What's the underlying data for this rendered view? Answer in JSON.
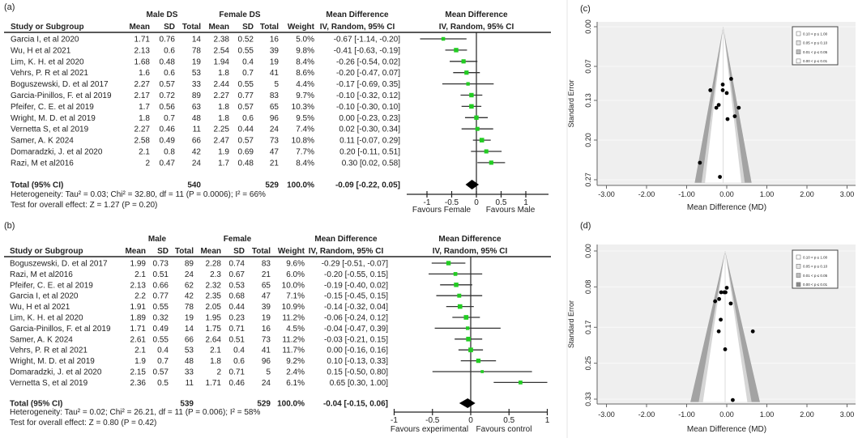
{
  "chart_data": [
    {
      "type": "forest",
      "panel_label": "(a)",
      "group1": "Male DS",
      "group2": "Female DS",
      "headers": {
        "study": "Study or Subgroup",
        "mean": "Mean",
        "sd": "SD",
        "total": "Total",
        "weight": "Weight",
        "md_title": "Mean Difference",
        "md_sub": "IV, Random, 95% CI"
      },
      "studies": [
        {
          "name": "Garcia I, et al 2020",
          "m1": "1.71",
          "sd1": "0.76",
          "n1": "14",
          "m2": "2.38",
          "sd2": "0.52",
          "n2": "16",
          "weight": "5.0%",
          "ci_text": "-0.67 [-1.14, -0.20]",
          "md": -0.67,
          "lo": -1.14,
          "hi": -0.2,
          "w": 5.0
        },
        {
          "name": "Wu, H et al 2021",
          "m1": "2.13",
          "sd1": "0.6",
          "n1": "78",
          "m2": "2.54",
          "sd2": "0.55",
          "n2": "39",
          "weight": "9.8%",
          "ci_text": "-0.41 [-0.63, -0.19]",
          "md": -0.41,
          "lo": -0.63,
          "hi": -0.19,
          "w": 9.8
        },
        {
          "name": "Lim, K. H. et al 2020",
          "m1": "1.68",
          "sd1": "0.48",
          "n1": "19",
          "m2": "1.94",
          "sd2": "0.4",
          "n2": "19",
          "weight": "8.4%",
          "ci_text": "-0.26 [-0.54, 0.02]",
          "md": -0.26,
          "lo": -0.54,
          "hi": 0.02,
          "w": 8.4
        },
        {
          "name": "Vehrs, P. R et al 2021",
          "m1": "1.6",
          "sd1": "0.6",
          "n1": "53",
          "m2": "1.8",
          "sd2": "0.7",
          "n2": "41",
          "weight": "8.6%",
          "ci_text": "-0.20 [-0.47, 0.07]",
          "md": -0.2,
          "lo": -0.47,
          "hi": 0.07,
          "w": 8.6
        },
        {
          "name": "Boguszewski, D. et al 2017",
          "m1": "2.27",
          "sd1": "0.57",
          "n1": "33",
          "m2": "2.44",
          "sd2": "0.55",
          "n2": "5",
          "weight": "4.4%",
          "ci_text": "-0.17 [-0.69, 0.35]",
          "md": -0.17,
          "lo": -0.69,
          "hi": 0.35,
          "w": 4.4
        },
        {
          "name": "Garcia-Pinillos, F. et al 2019",
          "m1": "2.17",
          "sd1": "0.72",
          "n1": "89",
          "m2": "2.27",
          "sd2": "0.77",
          "n2": "83",
          "weight": "9.7%",
          "ci_text": "-0.10 [-0.32, 0.12]",
          "md": -0.1,
          "lo": -0.32,
          "hi": 0.12,
          "w": 9.7
        },
        {
          "name": "Pfeifer, C. E. et al 2019",
          "m1": "1.7",
          "sd1": "0.56",
          "n1": "63",
          "m2": "1.8",
          "sd2": "0.57",
          "n2": "65",
          "weight": "10.3%",
          "ci_text": "-0.10 [-0.30, 0.10]",
          "md": -0.1,
          "lo": -0.3,
          "hi": 0.1,
          "w": 10.3
        },
        {
          "name": "Wright, M. D. et al 2019",
          "m1": "1.8",
          "sd1": "0.7",
          "n1": "48",
          "m2": "1.8",
          "sd2": "0.6",
          "n2": "96",
          "weight": "9.5%",
          "ci_text": "0.00 [-0.23, 0.23]",
          "md": 0.0,
          "lo": -0.23,
          "hi": 0.23,
          "w": 9.5
        },
        {
          "name": "Vernetta S, et al 2019",
          "m1": "2.27",
          "sd1": "0.46",
          "n1": "11",
          "m2": "2.25",
          "sd2": "0.44",
          "n2": "24",
          "weight": "7.4%",
          "ci_text": "0.02 [-0.30, 0.34]",
          "md": 0.02,
          "lo": -0.3,
          "hi": 0.34,
          "w": 7.4
        },
        {
          "name": "Samer, A. K 2024",
          "m1": "2.58",
          "sd1": "0.49",
          "n1": "66",
          "m2": "2.47",
          "sd2": "0.57",
          "n2": "73",
          "weight": "10.8%",
          "ci_text": "0.11 [-0.07, 0.29]",
          "md": 0.11,
          "lo": -0.07,
          "hi": 0.29,
          "w": 10.8
        },
        {
          "name": "Domaradzki, J. et al 2020",
          "m1": "2.1",
          "sd1": "0.8",
          "n1": "42",
          "m2": "1.9",
          "sd2": "0.69",
          "n2": "47",
          "weight": "7.7%",
          "ci_text": "0.20 [-0.11, 0.51]",
          "md": 0.2,
          "lo": -0.11,
          "hi": 0.51,
          "w": 7.7
        },
        {
          "name": "Razi, M et al2016",
          "m1": "2",
          "sd1": "0.47",
          "n1": "24",
          "m2": "1.7",
          "sd2": "0.48",
          "n2": "21",
          "weight": "8.4%",
          "ci_text": "0.30 [0.02, 0.58]",
          "md": 0.3,
          "lo": 0.02,
          "hi": 0.58,
          "w": 8.4
        }
      ],
      "total": {
        "label": "Total (95% CI)",
        "n1": "540",
        "n2": "529",
        "weight": "100.0%",
        "ci_text": "-0.09 [-0.22, 0.05]",
        "md": -0.09,
        "lo": -0.22,
        "hi": 0.05
      },
      "heterogeneity": "Heterogeneity: Tau² = 0.03; Chi² = 32.80, df = 11 (P = 0.0006); I² = 66%",
      "overall": "Test for overall effect: Z = 1.27 (P = 0.20)",
      "axis": {
        "ticks": [
          -1,
          -0.5,
          0,
          0.5,
          1
        ],
        "tick_labels": [
          "-1",
          "-0.5",
          "0",
          "0.5",
          "1"
        ],
        "favours_left": "Favours Female",
        "favours_right": "Favours Male"
      },
      "colors": {
        "point": "#22cc22",
        "line": "#333333"
      }
    },
    {
      "type": "forest",
      "panel_label": "(b)",
      "group1": "Male",
      "group2": "Female",
      "headers": {
        "study": "Study or Subgroup",
        "mean": "Mean",
        "sd": "SD",
        "total": "Total",
        "weight": "Weight",
        "md_title": "Mean Difference",
        "md_sub": "IV, Random, 95% CI"
      },
      "studies": [
        {
          "name": "Boguszewski, D. et al 2017",
          "m1": "1.99",
          "sd1": "0.73",
          "n1": "89",
          "m2": "2.28",
          "sd2": "0.74",
          "n2": "83",
          "weight": "9.6%",
          "ci_text": "-0.29 [-0.51, -0.07]",
          "md": -0.29,
          "lo": -0.51,
          "hi": -0.07,
          "w": 9.6
        },
        {
          "name": "Razi, M et al2016",
          "m1": "2.1",
          "sd1": "0.51",
          "n1": "24",
          "m2": "2.3",
          "sd2": "0.67",
          "n2": "21",
          "weight": "6.0%",
          "ci_text": "-0.20 [-0.55, 0.15]",
          "md": -0.2,
          "lo": -0.55,
          "hi": 0.15,
          "w": 6.0
        },
        {
          "name": "Pfeifer, C. E. et al 2019",
          "m1": "2.13",
          "sd1": "0.66",
          "n1": "62",
          "m2": "2.32",
          "sd2": "0.53",
          "n2": "65",
          "weight": "10.0%",
          "ci_text": "-0.19 [-0.40, 0.02]",
          "md": -0.19,
          "lo": -0.4,
          "hi": 0.02,
          "w": 10.0
        },
        {
          "name": "Garcia I, et al 2020",
          "m1": "2.2",
          "sd1": "0.77",
          "n1": "42",
          "m2": "2.35",
          "sd2": "0.68",
          "n2": "47",
          "weight": "7.1%",
          "ci_text": "-0.15 [-0.45, 0.15]",
          "md": -0.15,
          "lo": -0.45,
          "hi": 0.15,
          "w": 7.1
        },
        {
          "name": "Wu, H et al 2021",
          "m1": "1.91",
          "sd1": "0.55",
          "n1": "78",
          "m2": "2.05",
          "sd2": "0.44",
          "n2": "39",
          "weight": "10.9%",
          "ci_text": "-0.14 [-0.32, 0.04]",
          "md": -0.14,
          "lo": -0.32,
          "hi": 0.04,
          "w": 10.9
        },
        {
          "name": "Lim, K. H. et al 2020",
          "m1": "1.89",
          "sd1": "0.32",
          "n1": "19",
          "m2": "1.95",
          "sd2": "0.23",
          "n2": "19",
          "weight": "11.2%",
          "ci_text": "-0.06 [-0.24, 0.12]",
          "md": -0.06,
          "lo": -0.24,
          "hi": 0.12,
          "w": 11.2
        },
        {
          "name": "Garcia-Pinillos, F. et al 2019",
          "m1": "1.71",
          "sd1": "0.49",
          "n1": "14",
          "m2": "1.75",
          "sd2": "0.71",
          "n2": "16",
          "weight": "4.5%",
          "ci_text": "-0.04 [-0.47, 0.39]",
          "md": -0.04,
          "lo": -0.47,
          "hi": 0.39,
          "w": 4.5
        },
        {
          "name": "Samer, A. K 2024",
          "m1": "2.61",
          "sd1": "0.55",
          "n1": "66",
          "m2": "2.64",
          "sd2": "0.51",
          "n2": "73",
          "weight": "11.2%",
          "ci_text": "-0.03 [-0.21, 0.15]",
          "md": -0.03,
          "lo": -0.21,
          "hi": 0.15,
          "w": 11.2
        },
        {
          "name": "Vehrs, P. R et al 2021",
          "m1": "2.1",
          "sd1": "0.4",
          "n1": "53",
          "m2": "2.1",
          "sd2": "0.4",
          "n2": "41",
          "weight": "11.7%",
          "ci_text": "0.00 [-0.16, 0.16]",
          "md": 0.0,
          "lo": -0.16,
          "hi": 0.16,
          "w": 11.7
        },
        {
          "name": "Wright, M. D. et al 2019",
          "m1": "1.9",
          "sd1": "0.7",
          "n1": "48",
          "m2": "1.8",
          "sd2": "0.6",
          "n2": "96",
          "weight": "9.2%",
          "ci_text": "0.10 [-0.13, 0.33]",
          "md": 0.1,
          "lo": -0.13,
          "hi": 0.33,
          "w": 9.2
        },
        {
          "name": "Domaradzki, J. et al 2020",
          "m1": "2.15",
          "sd1": "0.57",
          "n1": "33",
          "m2": "2",
          "sd2": "0.71",
          "n2": "5",
          "weight": "2.4%",
          "ci_text": "0.15 [-0.50, 0.80]",
          "md": 0.15,
          "lo": -0.5,
          "hi": 0.8,
          "w": 2.4
        },
        {
          "name": "Vernetta S, et al 2019",
          "m1": "2.36",
          "sd1": "0.5",
          "n1": "11",
          "m2": "1.71",
          "sd2": "0.46",
          "n2": "24",
          "weight": "6.1%",
          "ci_text": "0.65 [0.30, 1.00]",
          "md": 0.65,
          "lo": 0.3,
          "hi": 1.0,
          "w": 6.1
        }
      ],
      "total": {
        "label": "Total (95% CI)",
        "n1": "539",
        "n2": "529",
        "weight": "100.0%",
        "ci_text": "-0.04 [-0.15, 0.06]",
        "md": -0.04,
        "lo": -0.15,
        "hi": 0.06
      },
      "heterogeneity": "Heterogeneity: Tau² = 0.02; Chi² = 26.21, df = 11 (P = 0.006); I² = 58%",
      "overall": "Test for overall effect: Z = 0.80 (P = 0.42)",
      "axis": {
        "ticks": [
          -1,
          -0.5,
          0,
          0.5,
          1
        ],
        "tick_labels": [
          "-1",
          "-0.5",
          "0",
          "0.5",
          "1"
        ],
        "favours_left": "Favours  experimental",
        "favours_right": "Favours control"
      },
      "colors": {
        "point": "#22cc22",
        "line": "#333333"
      }
    },
    {
      "type": "scatter",
      "subtype": "funnel",
      "panel_label": "(c)",
      "xlabel": "Mean Difference (MD)",
      "ylabel": "Standard Error",
      "xlim": [
        -3.3,
        3.2
      ],
      "x_ticks": [
        -3,
        -2,
        -1,
        0,
        1,
        2,
        3
      ],
      "x_tick_labels": [
        "-3.00",
        "-2.00",
        "-1.00",
        "0.00",
        "1.00",
        "2.00",
        "3.00"
      ],
      "ylim": [
        0,
        0.27
      ],
      "y_ticks": [
        0,
        0.07,
        0.13,
        0.2,
        0.27
      ],
      "y_tick_labels": [
        "0.00",
        "0.07",
        "0.13",
        "0.20",
        "0.27"
      ],
      "center": -0.09,
      "legend": [
        "0.10 < p ≤ 1.00",
        "0.05 < p ≤ 0.10",
        "0.01 < p ≤ 0.05",
        "0.00 < p ≤ 0.01"
      ],
      "legend_placement": "top-right",
      "points": [
        {
          "md": -0.67,
          "se": 0.24
        },
        {
          "md": -0.41,
          "se": 0.112
        },
        {
          "md": -0.26,
          "se": 0.143
        },
        {
          "md": -0.2,
          "se": 0.138
        },
        {
          "md": -0.17,
          "se": 0.265
        },
        {
          "md": -0.1,
          "se": 0.112
        },
        {
          "md": -0.1,
          "se": 0.102
        },
        {
          "md": 0.0,
          "se": 0.117
        },
        {
          "md": 0.02,
          "se": 0.163
        },
        {
          "md": 0.11,
          "se": 0.092
        },
        {
          "md": 0.2,
          "se": 0.158
        },
        {
          "md": 0.3,
          "se": 0.143
        }
      ]
    },
    {
      "type": "scatter",
      "subtype": "funnel",
      "panel_label": "(d)",
      "xlabel": "Mean Difference (MD)",
      "ylabel": "Standard Error",
      "xlim": [
        -3.3,
        3.2
      ],
      "x_ticks": [
        -3,
        -2,
        -1,
        0,
        1,
        2,
        3
      ],
      "x_tick_labels": [
        "-3.00",
        "-2.00",
        "-1.00",
        "0.00",
        "1.00",
        "2.00",
        "3.00"
      ],
      "ylim": [
        0,
        0.33
      ],
      "y_ticks": [
        0,
        0.08,
        0.17,
        0.25,
        0.33
      ],
      "y_tick_labels": [
        "0.00",
        "0.08",
        "0.17",
        "0.25",
        "0.33"
      ],
      "center": -0.04,
      "legend": [
        "0.10 < p ≤ 1.00",
        "0.05 < p ≤ 0.10",
        "0.01 < p ≤ 0.05",
        "0.00 < p ≤ 0.01"
      ],
      "legend_placement": "top-right",
      "points": [
        {
          "md": -0.29,
          "se": 0.112
        },
        {
          "md": -0.2,
          "se": 0.179
        },
        {
          "md": -0.19,
          "se": 0.107
        },
        {
          "md": -0.15,
          "se": 0.153
        },
        {
          "md": -0.14,
          "se": 0.092
        },
        {
          "md": -0.06,
          "se": 0.092
        },
        {
          "md": -0.04,
          "se": 0.219
        },
        {
          "md": -0.03,
          "se": 0.092
        },
        {
          "md": 0.0,
          "se": 0.082
        },
        {
          "md": 0.1,
          "se": 0.117
        },
        {
          "md": 0.15,
          "se": 0.332
        },
        {
          "md": 0.65,
          "se": 0.179
        }
      ]
    }
  ]
}
